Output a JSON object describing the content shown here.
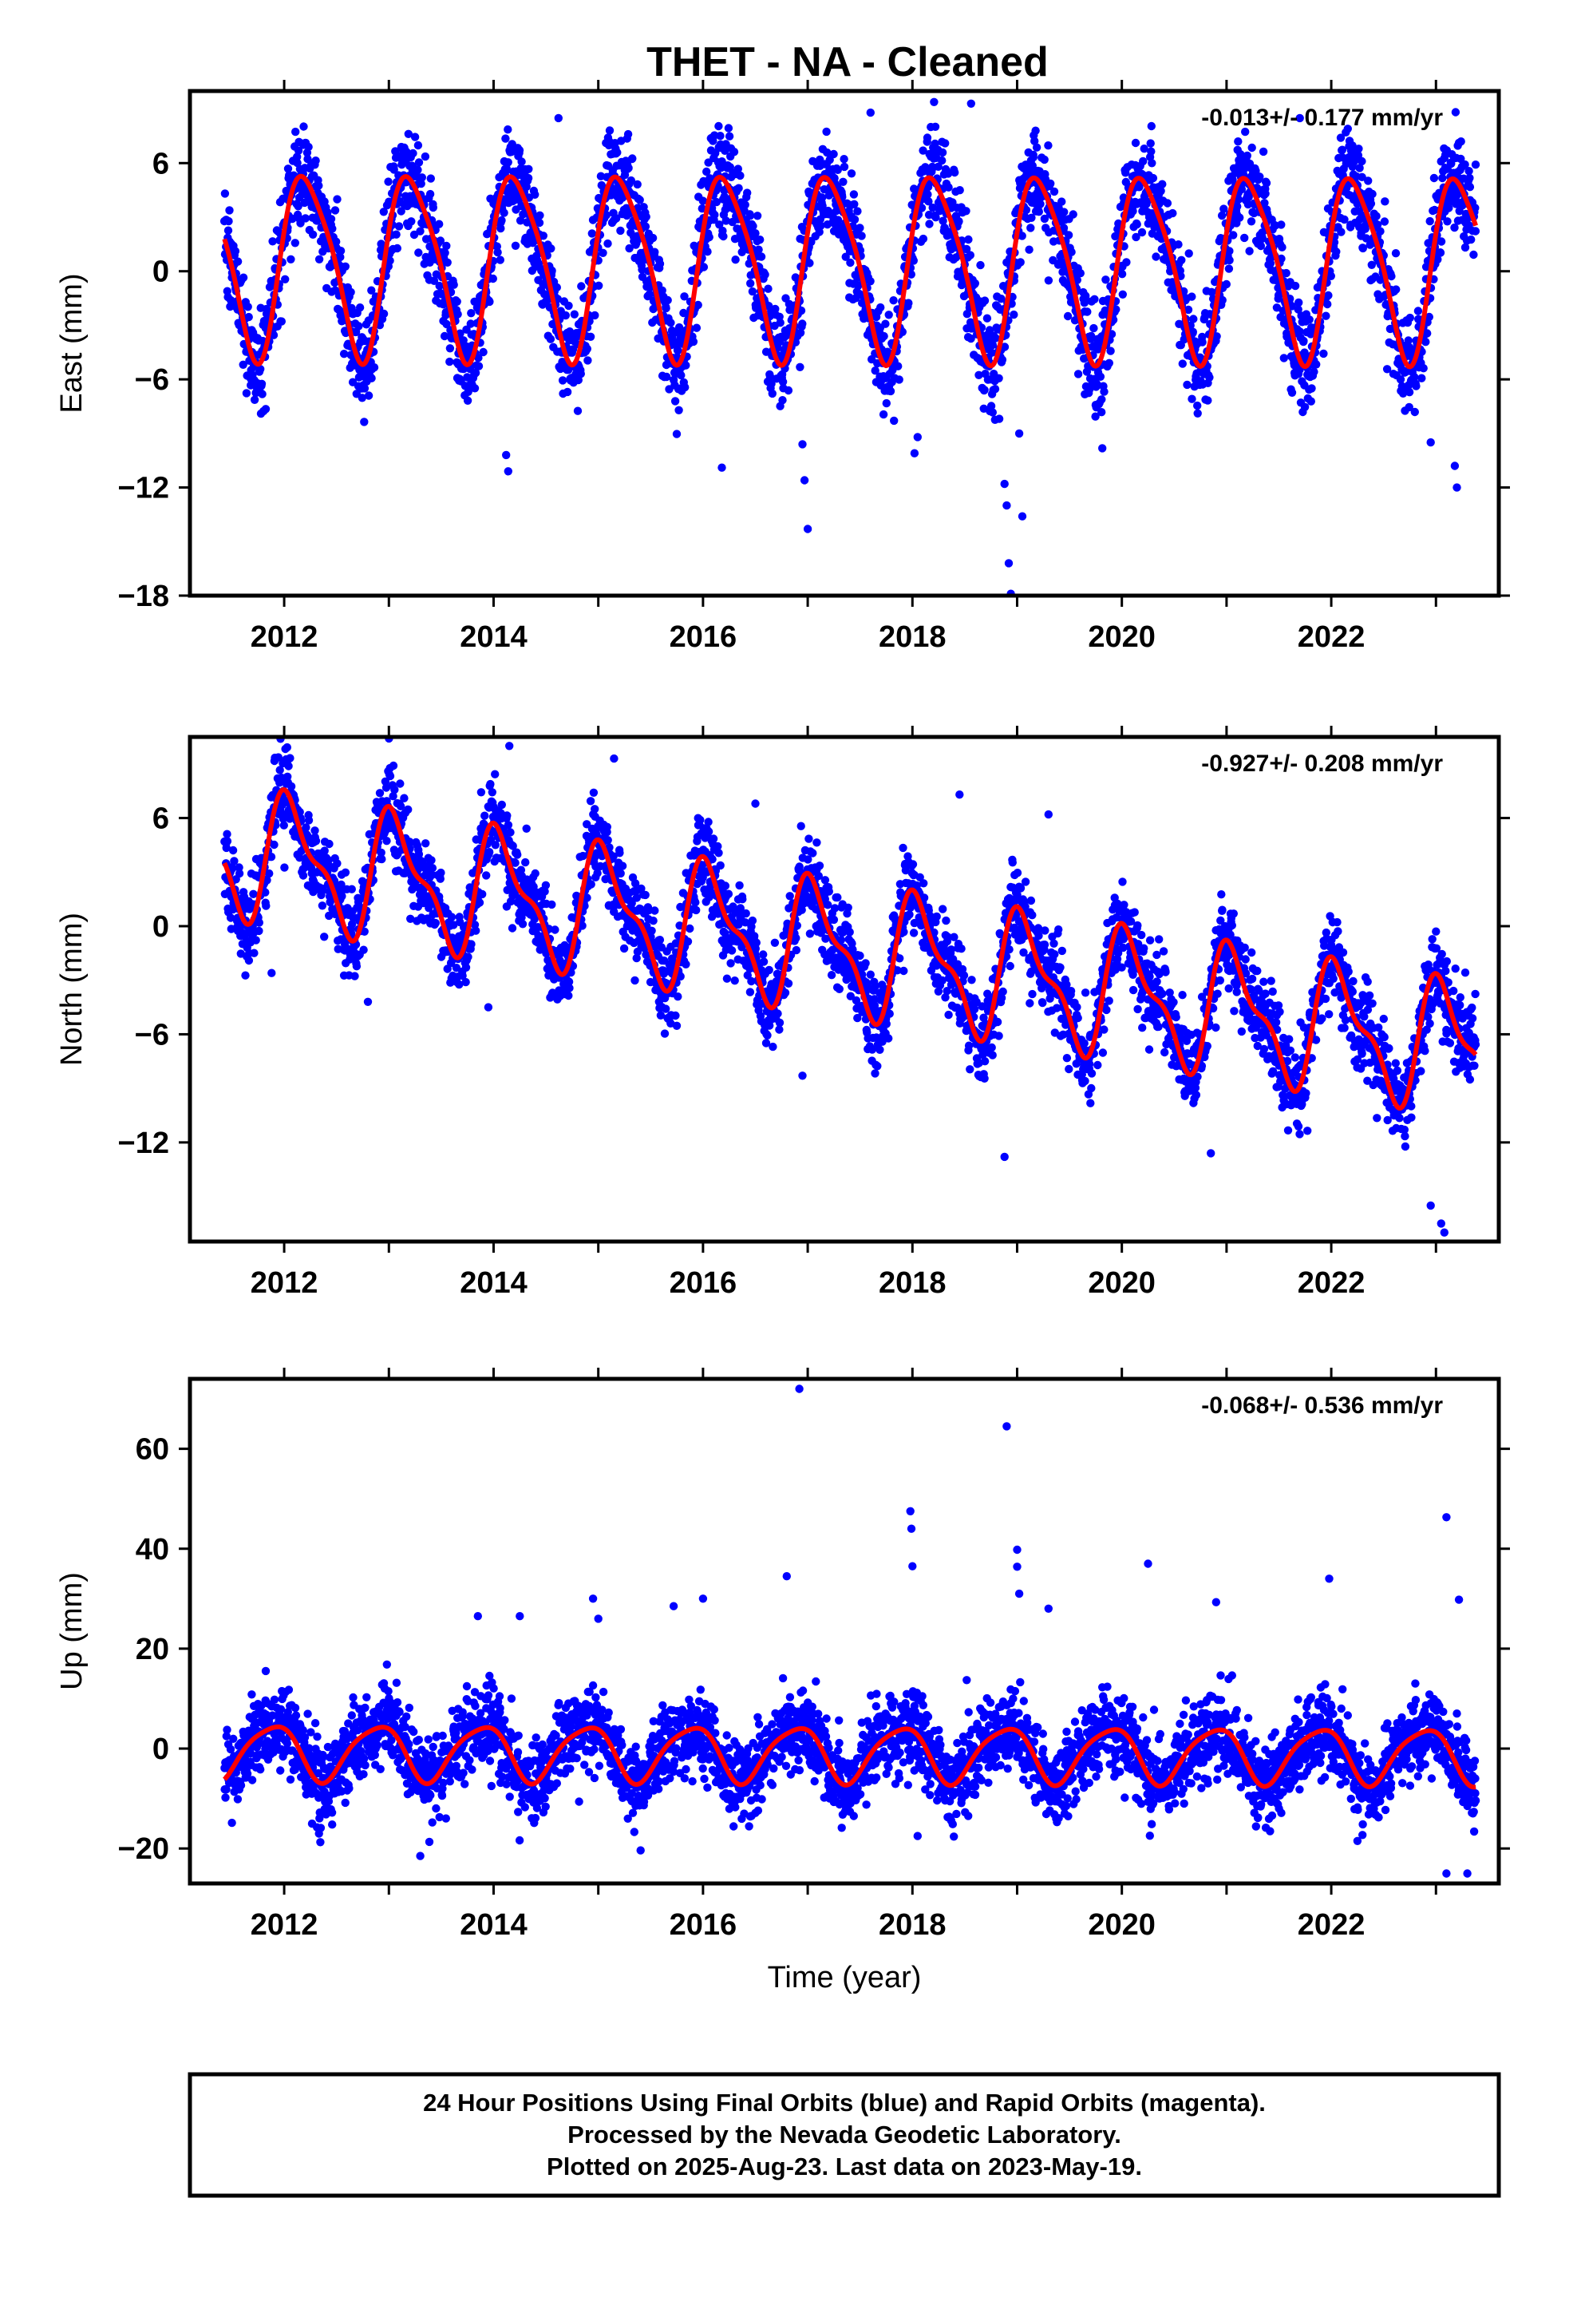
{
  "title": "THET  - NA - Cleaned",
  "colors": {
    "points": "#0000ff",
    "fit": "#ff0000",
    "frame": "#000000",
    "background": "#ffffff"
  },
  "footer": {
    "line1": "24 Hour Positions Using Final Orbits (blue) and Rapid Orbits (magenta).",
    "line2": "Processed by the Nevada Geodetic Laboratory.",
    "line3": "Plotted on 2025-Aug-23. Last data on 2023-May-19."
  },
  "chart_data": [
    {
      "type": "scatter",
      "id": "east",
      "ylabel": "East (mm)",
      "xlabel": "",
      "rate_label": "-0.013+/- 0.177 mm/yr",
      "xlim": [
        2011.1,
        2023.6
      ],
      "ylim": [
        -18,
        10
      ],
      "x_ticks": [
        2012,
        2014,
        2016,
        2018,
        2020,
        2022
      ],
      "y_ticks": [
        6,
        0,
        -6,
        -12,
        -18
      ],
      "y_tick_labels": [
        "6",
        "0",
        "−6",
        "−12",
        "−18"
      ],
      "series": [],
      "fit_model": {
        "slope": -0.013,
        "annual_amp": 5.0,
        "annual_phase": 0.2,
        "semiannual_amp": 0.9,
        "semiannual_phase": 1.0,
        "offset": 0.5
      },
      "noise_sd": 1.4,
      "outliers": [
        {
          "x": 2014.12,
          "y": -10.2
        },
        {
          "x": 2014.14,
          "y": -11.1
        },
        {
          "x": 2016.18,
          "y": -10.9
        },
        {
          "x": 2016.95,
          "y": -9.6
        },
        {
          "x": 2016.97,
          "y": -11.6
        },
        {
          "x": 2017.0,
          "y": -14.3
        },
        {
          "x": 2018.02,
          "y": -10.1
        },
        {
          "x": 2018.05,
          "y": -9.2
        },
        {
          "x": 2018.88,
          "y": -11.8
        },
        {
          "x": 2018.9,
          "y": -13.0
        },
        {
          "x": 2018.92,
          "y": -16.2
        },
        {
          "x": 2018.94,
          "y": -17.9
        },
        {
          "x": 2019.02,
          "y": -9.0
        },
        {
          "x": 2019.05,
          "y": -13.6
        },
        {
          "x": 2018.56,
          "y": 9.3
        },
        {
          "x": 2014.62,
          "y": 8.5
        },
        {
          "x": 2017.6,
          "y": 8.8
        },
        {
          "x": 2021.7,
          "y": 8.5
        },
        {
          "x": 2022.95,
          "y": -9.5
        },
        {
          "x": 2023.2,
          "y": -12.0
        },
        {
          "x": 2023.18,
          "y": -10.8
        }
      ]
    },
    {
      "type": "scatter",
      "id": "north",
      "ylabel": "North (mm)",
      "xlabel": "",
      "rate_label": "-0.927+/- 0.208 mm/yr",
      "xlim": [
        2011.1,
        2023.6
      ],
      "ylim": [
        -17.5,
        10.5
      ],
      "x_ticks": [
        2012,
        2014,
        2016,
        2018,
        2020,
        2022
      ],
      "y_ticks": [
        6,
        0,
        -6,
        -12
      ],
      "y_tick_labels": [
        "6",
        "0",
        "−6",
        "−12"
      ],
      "series": [],
      "fit_model": {
        "slope": -0.927,
        "annual_amp": 3.2,
        "annual_phase": 1.1,
        "semiannual_amp": 1.3,
        "semiannual_phase": 2.2,
        "offset": 4.6
      },
      "noise_sd": 1.2,
      "outliers": [
        {
          "x": 2011.88,
          "y": -2.6
        },
        {
          "x": 2012.8,
          "y": -4.2
        },
        {
          "x": 2013.95,
          "y": -4.5
        },
        {
          "x": 2014.15,
          "y": 10.0
        },
        {
          "x": 2015.15,
          "y": 9.3
        },
        {
          "x": 2016.95,
          "y": -8.3
        },
        {
          "x": 2018.88,
          "y": -12.8
        },
        {
          "x": 2020.85,
          "y": -12.6
        },
        {
          "x": 2022.95,
          "y": -15.5
        },
        {
          "x": 2023.05,
          "y": -16.5
        },
        {
          "x": 2023.08,
          "y": -17.0
        },
        {
          "x": 2018.45,
          "y": 7.3
        },
        {
          "x": 2019.3,
          "y": 6.2
        },
        {
          "x": 2016.5,
          "y": 6.8
        }
      ]
    },
    {
      "type": "scatter",
      "id": "up",
      "ylabel": "Up (mm)",
      "xlabel": "Time (year)",
      "rate_label": "-0.068+/- 0.536 mm/yr",
      "xlim": [
        2011.1,
        2023.6
      ],
      "ylim": [
        -27,
        74
      ],
      "x_ticks": [
        2012,
        2014,
        2016,
        2018,
        2020,
        2022
      ],
      "y_ticks": [
        60,
        40,
        20,
        0,
        -20
      ],
      "y_tick_labels": [
        "60",
        "40",
        "20",
        "0",
        "−20"
      ],
      "series": [],
      "fit_model": {
        "slope": -0.068,
        "annual_amp": 5.5,
        "annual_phase": 2.3,
        "semiannual_amp": 1.0,
        "semiannual_phase": 0.5,
        "offset": -0.5
      },
      "noise_sd": 4.0,
      "outliers": [
        {
          "x": 2016.92,
          "y": 72.0
        },
        {
          "x": 2018.9,
          "y": 64.5
        },
        {
          "x": 2017.98,
          "y": 47.5
        },
        {
          "x": 2017.99,
          "y": 44.0
        },
        {
          "x": 2018.0,
          "y": 36.5
        },
        {
          "x": 2019.0,
          "y": 39.8
        },
        {
          "x": 2019.0,
          "y": 36.4
        },
        {
          "x": 2019.02,
          "y": 31.0
        },
        {
          "x": 2019.3,
          "y": 28.0
        },
        {
          "x": 2020.25,
          "y": 37.0
        },
        {
          "x": 2020.9,
          "y": 29.3
        },
        {
          "x": 2021.98,
          "y": 34.0
        },
        {
          "x": 2023.1,
          "y": 46.3
        },
        {
          "x": 2023.22,
          "y": 29.8
        },
        {
          "x": 2014.25,
          "y": 26.5
        },
        {
          "x": 2013.85,
          "y": 26.5
        },
        {
          "x": 2014.95,
          "y": 30.0
        },
        {
          "x": 2015.0,
          "y": 26.0
        },
        {
          "x": 2015.72,
          "y": 28.5
        },
        {
          "x": 2016.0,
          "y": 30.0
        },
        {
          "x": 2016.8,
          "y": 34.5
        },
        {
          "x": 2013.3,
          "y": -21.5
        },
        {
          "x": 2023.1,
          "y": -25.0
        },
        {
          "x": 2023.3,
          "y": -25.0
        },
        {
          "x": 2018.05,
          "y": -17.5
        },
        {
          "x": 2022.25,
          "y": -18.5
        }
      ]
    }
  ]
}
